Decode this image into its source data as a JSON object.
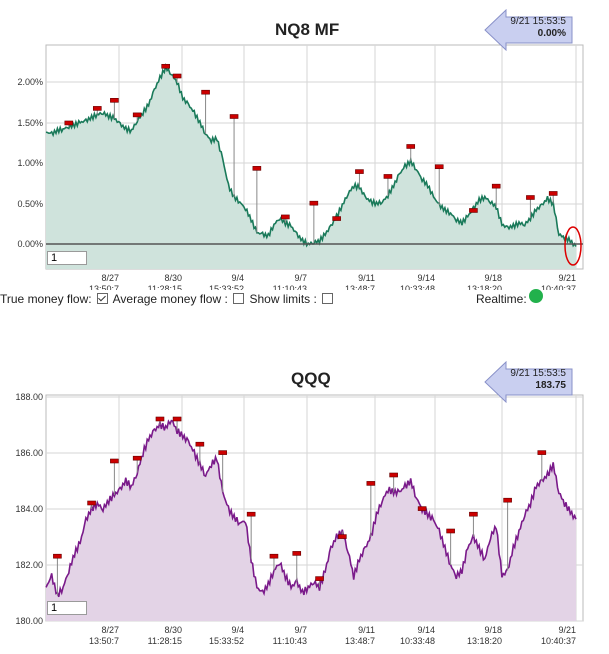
{
  "charts": [
    {
      "id": "nq8",
      "title": "NQ8 MF",
      "callout": {
        "timestamp": "9/21 15:53:5",
        "value": "0.00%"
      },
      "input_value": "1"
    },
    {
      "id": "qqq",
      "title": "QQQ",
      "callout": {
        "timestamp": "9/21 15:53:5",
        "value": "183.75"
      },
      "input_value": "1"
    }
  ],
  "controls": {
    "true_money_flow_label": "True money flow:",
    "average_money_flow_label": "Average money flow :",
    "show_limits_label": "Show limits :",
    "realtime_label": "Realtime:",
    "average_money_flow_checked": true,
    "show_limits_checked": false,
    "show_limits_checked_2": false
  },
  "colors": {
    "nq_line": "#1a7a5a",
    "nq_fill": "#cfe3dc",
    "qqq_line": "#7a1a8a",
    "qqq_fill": "#e3d3e6",
    "marker": "#cc0000",
    "callout_fill": "#c9cff0",
    "realtime_dot": "#22b14c",
    "highlight_circle": "#dd0000"
  },
  "chart_data": [
    {
      "type": "area",
      "title": "NQ8 MF",
      "yticks": [
        "2.00%",
        "1.50%",
        "1.00%",
        "0.50%",
        "0.00%"
      ],
      "ylim": [
        -0.2,
        2.3
      ],
      "xticks": [
        {
          "date": "8/27",
          "time": "13:50:7"
        },
        {
          "date": "8/30",
          "time": "11:28:15"
        },
        {
          "date": "9/4",
          "time": "15:33:52"
        },
        {
          "date": "9/7",
          "time": "11:10:43"
        },
        {
          "date": "9/11",
          "time": "13:48:7"
        },
        {
          "date": "9/14",
          "time": "10:33:48"
        },
        {
          "date": "9/18",
          "time": "13:18:20"
        },
        {
          "date": "9/21",
          "time": "10:40:37"
        }
      ],
      "values": [
        1.38,
        1.36,
        1.4,
        1.42,
        1.45,
        1.47,
        1.5,
        1.52,
        1.56,
        1.6,
        1.62,
        1.58,
        1.55,
        1.48,
        1.42,
        1.4,
        1.52,
        1.62,
        1.72,
        1.9,
        2.05,
        2.18,
        2.1,
        2.0,
        1.8,
        1.72,
        1.62,
        1.5,
        1.36,
        1.28,
        1.3,
        1.05,
        0.72,
        0.58,
        0.52,
        0.44,
        0.3,
        0.14,
        0.12,
        0.1,
        0.24,
        0.32,
        0.26,
        0.22,
        0.12,
        0.04,
        0.0,
        0.02,
        0.04,
        0.12,
        0.22,
        0.34,
        0.48,
        0.62,
        0.72,
        0.7,
        0.58,
        0.52,
        0.5,
        0.52,
        0.6,
        0.72,
        0.86,
        0.96,
        1.02,
        0.92,
        0.8,
        0.72,
        0.58,
        0.48,
        0.42,
        0.38,
        0.3,
        0.26,
        0.34,
        0.44,
        0.54,
        0.58,
        0.52,
        0.46,
        0.24,
        0.2,
        0.22,
        0.26,
        0.24,
        0.32,
        0.42,
        0.48,
        0.56,
        0.5,
        0.12,
        0.08,
        0.04,
        -0.04
      ]
    },
    {
      "type": "area",
      "title": "QQQ",
      "yticks": [
        "188.00",
        "186.00",
        "184.00",
        "182.00",
        "180.00"
      ],
      "ylim": [
        180,
        188
      ],
      "xticks": [
        {
          "date": "8/27",
          "time": "13:50:7"
        },
        {
          "date": "8/30",
          "time": "11:28:15"
        },
        {
          "date": "9/4",
          "time": "15:33:52"
        },
        {
          "date": "9/7",
          "time": "11:10:43"
        },
        {
          "date": "9/11",
          "time": "13:48:7"
        },
        {
          "date": "9/14",
          "time": "10:33:48"
        },
        {
          "date": "9/18",
          "time": "13:18:20"
        },
        {
          "date": "9/21",
          "time": "10:40:37"
        }
      ],
      "values": [
        181.2,
        181.6,
        180.9,
        181.2,
        181.8,
        182.4,
        182.8,
        183.6,
        184.0,
        184.2,
        184.0,
        184.3,
        184.5,
        184.7,
        185.0,
        184.8,
        185.3,
        186.0,
        186.5,
        186.8,
        187.0,
        186.9,
        187.2,
        186.8,
        186.6,
        186.4,
        186.0,
        185.6,
        185.2,
        185.6,
        185.8,
        184.6,
        184.0,
        183.7,
        183.5,
        183.6,
        182.2,
        181.2,
        181.0,
        181.3,
        181.8,
        182.1,
        181.6,
        181.2,
        181.4,
        181.0,
        181.2,
        181.4,
        181.2,
        181.8,
        182.6,
        183.0,
        183.2,
        182.5,
        181.6,
        182.2,
        182.6,
        183.0,
        183.8,
        184.3,
        184.7,
        184.6,
        184.6,
        184.8,
        185.0,
        184.4,
        184.0,
        183.8,
        183.6,
        183.2,
        182.6,
        182.0,
        181.6,
        181.8,
        182.6,
        183.0,
        182.6,
        182.2,
        183.0,
        183.4,
        181.6,
        181.8,
        182.6,
        183.2,
        183.8,
        184.2,
        184.8,
        185.0,
        185.2,
        185.6,
        184.6,
        184.2,
        183.9,
        183.6
      ]
    }
  ],
  "markers": {
    "nq8": [
      {
        "i": 4,
        "v": 1.42
      },
      {
        "i": 9,
        "v": 1.6
      },
      {
        "i": 12,
        "v": 1.7
      },
      {
        "i": 16,
        "v": 1.52
      },
      {
        "i": 21,
        "v": 2.12
      },
      {
        "i": 23,
        "v": 2.0
      },
      {
        "i": 28,
        "v": 1.8
      },
      {
        "i": 33,
        "v": 1.5
      },
      {
        "i": 37,
        "v": 0.86
      },
      {
        "i": 42,
        "v": 0.26
      },
      {
        "i": 47,
        "v": 0.43
      },
      {
        "i": 51,
        "v": 0.24
      },
      {
        "i": 55,
        "v": 0.82
      },
      {
        "i": 60,
        "v": 0.76
      },
      {
        "i": 64,
        "v": 1.13
      },
      {
        "i": 69,
        "v": 0.88
      },
      {
        "i": 75,
        "v": 0.34
      },
      {
        "i": 79,
        "v": 0.64
      },
      {
        "i": 85,
        "v": 0.5
      },
      {
        "i": 89,
        "v": 0.55
      }
    ],
    "qqq": [
      {
        "i": 2,
        "v": 182.1
      },
      {
        "i": 8,
        "v": 184.0
      },
      {
        "i": 12,
        "v": 185.5
      },
      {
        "i": 16,
        "v": 185.6
      },
      {
        "i": 20,
        "v": 187.0
      },
      {
        "i": 23,
        "v": 187.0
      },
      {
        "i": 27,
        "v": 186.1
      },
      {
        "i": 31,
        "v": 185.8
      },
      {
        "i": 36,
        "v": 183.6
      },
      {
        "i": 40,
        "v": 182.1
      },
      {
        "i": 44,
        "v": 182.2
      },
      {
        "i": 48,
        "v": 181.3
      },
      {
        "i": 52,
        "v": 182.8
      },
      {
        "i": 57,
        "v": 184.7
      },
      {
        "i": 61,
        "v": 185.0
      },
      {
        "i": 66,
        "v": 183.8
      },
      {
        "i": 71,
        "v": 183.0
      },
      {
        "i": 75,
        "v": 183.6
      },
      {
        "i": 81,
        "v": 184.1
      },
      {
        "i": 87,
        "v": 185.8
      }
    ]
  }
}
